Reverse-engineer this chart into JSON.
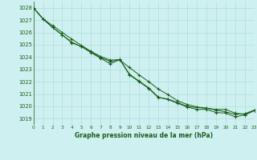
{
  "title": "Graphe pression niveau de la mer (hPa)",
  "background_color": "#cef0f0",
  "grid_color": "#aad8d8",
  "line_color": "#1a5c1a",
  "x_min": 0,
  "x_max": 23,
  "y_min": 1018.5,
  "y_max": 1028.5,
  "x": [
    0,
    1,
    2,
    3,
    4,
    5,
    6,
    7,
    8,
    9,
    10,
    11,
    12,
    13,
    14,
    15,
    16,
    17,
    18,
    19,
    20,
    21,
    22,
    23
  ],
  "series1_y": [
    1028.0,
    1027.1,
    1026.4,
    1025.8,
    1025.2,
    1024.85,
    1024.45,
    1024.05,
    1023.75,
    1023.8,
    1022.55,
    1022.0,
    1021.45,
    1020.7,
    1020.6,
    1020.3,
    1020.0,
    1019.9,
    1019.85,
    1019.7,
    1019.55,
    1019.35,
    1019.4,
    1019.7
  ],
  "series2_y": [
    1028.0,
    1027.1,
    1026.4,
    1025.8,
    1025.15,
    1024.85,
    1024.35,
    1023.9,
    1023.45,
    1023.8,
    1022.6,
    1022.05,
    1021.5,
    1020.75,
    1020.55,
    1020.25,
    1019.95,
    1019.75,
    1019.75,
    1019.5,
    1019.45,
    1019.15,
    1019.3,
    1019.65
  ],
  "series3_y": [
    1028.0,
    1027.1,
    1026.55,
    1026.0,
    1025.45,
    1024.95,
    1024.45,
    1023.95,
    1023.65,
    1023.75,
    1023.15,
    1022.55,
    1022.0,
    1021.4,
    1020.95,
    1020.45,
    1020.15,
    1019.95,
    1019.85,
    1019.75,
    1019.75,
    1019.45,
    1019.35,
    1019.65
  ]
}
